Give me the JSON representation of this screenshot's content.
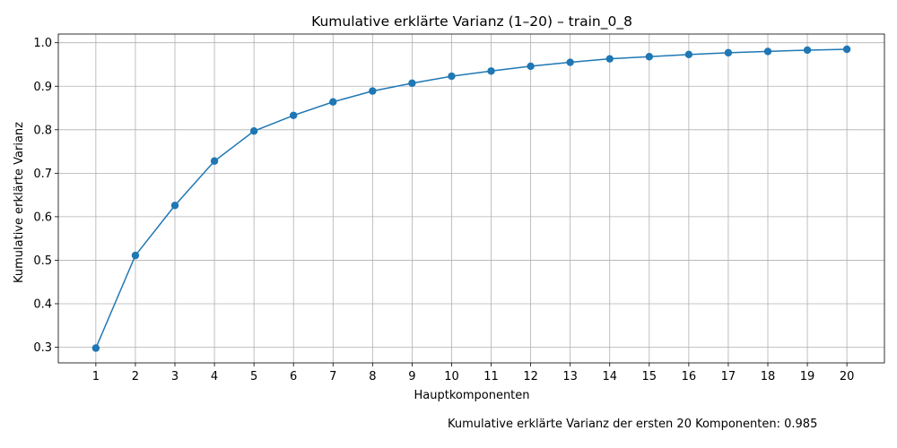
{
  "chart_data": {
    "type": "line",
    "title": "Kumulative erklärte Varianz (1–20) – train_0_8",
    "xlabel": "Hauptkomponenten",
    "ylabel": "Kumulative erklärte Varianz",
    "x": [
      1,
      2,
      3,
      4,
      5,
      6,
      7,
      8,
      9,
      10,
      11,
      12,
      13,
      14,
      15,
      16,
      17,
      18,
      19,
      20
    ],
    "x_tick_labels": [
      "1",
      "2",
      "3",
      "4",
      "5",
      "6",
      "7",
      "8",
      "9",
      "10",
      "11",
      "12",
      "13",
      "14",
      "15",
      "16",
      "17",
      "18",
      "19",
      "20"
    ],
    "y": [
      0.298,
      0.511,
      0.626,
      0.728,
      0.797,
      0.833,
      0.864,
      0.889,
      0.907,
      0.923,
      0.935,
      0.946,
      0.955,
      0.963,
      0.968,
      0.973,
      0.977,
      0.98,
      0.983,
      0.985
    ],
    "y_ticks": [
      0.3,
      0.4,
      0.5,
      0.6,
      0.7,
      0.8,
      0.9,
      1.0
    ],
    "y_tick_labels": [
      "0.3",
      "0.4",
      "0.5",
      "0.6",
      "0.7",
      "0.8",
      "0.9",
      "1.0"
    ],
    "xlim": [
      0.05,
      20.95
    ],
    "ylim": [
      0.264,
      1.02
    ],
    "grid": true,
    "line_color": "#1f77b4",
    "marker": "circle"
  },
  "footnote": "Kumulative erklärte Varianz der ersten 20 Komponenten: 0.985"
}
